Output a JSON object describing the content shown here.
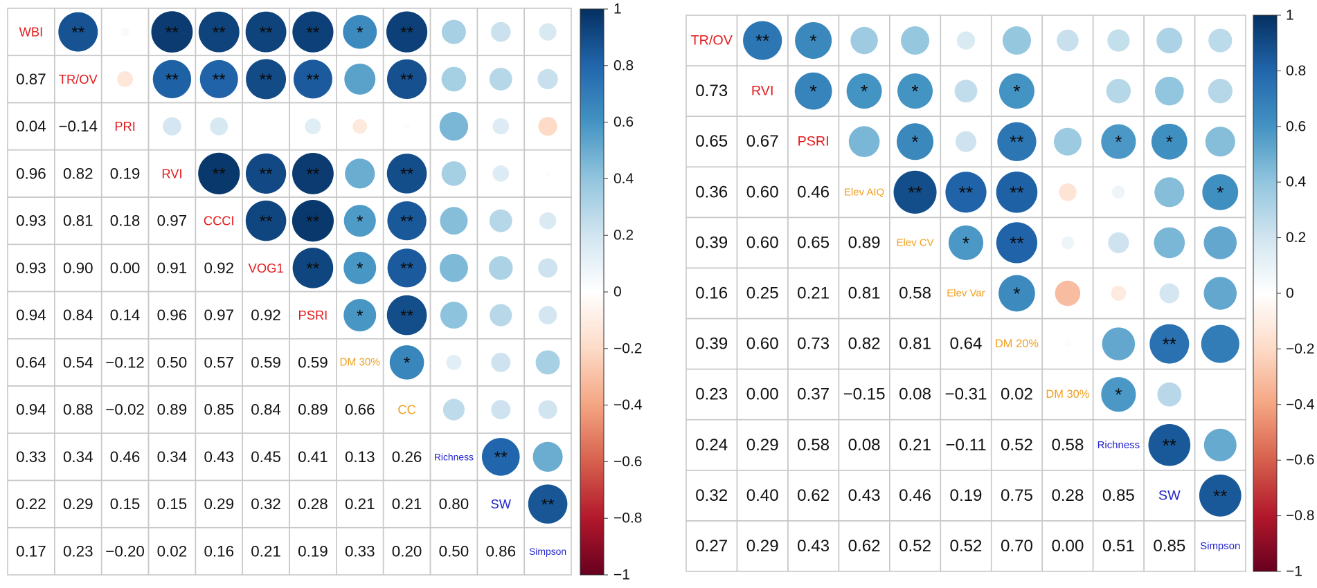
{
  "colors": {
    "label_red": "#e31a1c",
    "label_orange": "#f0a020",
    "label_blue": "#2222cc",
    "grid": "#c8c8c8",
    "text": "#111111"
  },
  "chart_data": [
    {
      "type": "heatmap",
      "subtype": "correlation-matrix",
      "upper": "circles sized and colored by correlation, significance stars",
      "lower": "correlation coefficients printed as numbers",
      "variables": [
        "WBI",
        "TR/OV",
        "PRI",
        "RVI",
        "CCCI",
        "VOG1",
        "PSRI",
        "DM 30%",
        "CC",
        "Richness",
        "SW",
        "Simpson"
      ],
      "variable_groups": [
        "red",
        "red",
        "red",
        "red",
        "red",
        "red",
        "red",
        "orange",
        "orange",
        "blue",
        "blue",
        "blue"
      ],
      "matrix": [
        [
          1,
          0.87,
          0.04,
          0.96,
          0.93,
          0.93,
          0.94,
          0.64,
          0.94,
          0.33,
          0.22,
          0.17
        ],
        [
          0.87,
          1,
          -0.14,
          0.82,
          0.81,
          0.9,
          0.84,
          0.54,
          0.88,
          0.34,
          0.29,
          0.23
        ],
        [
          0.04,
          -0.14,
          1,
          0.19,
          0.18,
          0.0,
          0.14,
          -0.12,
          -0.02,
          0.46,
          0.15,
          -0.2
        ],
        [
          0.96,
          0.82,
          0.19,
          1,
          0.97,
          0.91,
          0.96,
          0.5,
          0.89,
          0.34,
          0.15,
          0.02
        ],
        [
          0.93,
          0.81,
          0.18,
          0.97,
          1,
          0.92,
          0.97,
          0.57,
          0.85,
          0.43,
          0.29,
          0.16
        ],
        [
          0.93,
          0.9,
          0.0,
          0.91,
          0.92,
          1,
          0.92,
          0.59,
          0.84,
          0.45,
          0.32,
          0.21
        ],
        [
          0.94,
          0.84,
          0.14,
          0.96,
          0.97,
          0.92,
          1,
          0.59,
          0.89,
          0.41,
          0.28,
          0.19
        ],
        [
          0.64,
          0.54,
          -0.12,
          0.5,
          0.57,
          0.59,
          0.59,
          1,
          0.66,
          0.13,
          0.21,
          0.33
        ],
        [
          0.94,
          0.88,
          -0.02,
          0.89,
          0.85,
          0.84,
          0.89,
          0.66,
          1,
          0.26,
          0.21,
          0.2
        ],
        [
          0.33,
          0.34,
          0.46,
          0.34,
          0.43,
          0.45,
          0.41,
          0.13,
          0.26,
          1,
          0.8,
          0.5
        ],
        [
          0.22,
          0.29,
          0.15,
          0.15,
          0.29,
          0.32,
          0.28,
          0.21,
          0.21,
          0.8,
          1,
          0.86
        ],
        [
          0.17,
          0.23,
          -0.2,
          0.02,
          0.16,
          0.21,
          0.19,
          0.33,
          0.2,
          0.5,
          0.86,
          1
        ]
      ],
      "lower_labels": [
        [],
        [
          "0.87"
        ],
        [
          "0.04",
          "−0.14"
        ],
        [
          "0.96",
          "0.82",
          "0.19"
        ],
        [
          "0.93",
          "0.81",
          "0.18",
          "0.97"
        ],
        [
          "0.93",
          "0.90",
          "0.00",
          "0.91",
          "0.92"
        ],
        [
          "0.94",
          "0.84",
          "0.14",
          "0.96",
          "0.97",
          "0.92"
        ],
        [
          "0.64",
          "0.54",
          "−0.12",
          "0.50",
          "0.57",
          "0.59",
          "0.59"
        ],
        [
          "0.94",
          "0.88",
          "−0.02",
          "0.89",
          "0.85",
          "0.84",
          "0.89",
          "0.66"
        ],
        [
          "0.33",
          "0.34",
          "0.46",
          "0.34",
          "0.43",
          "0.45",
          "0.41",
          "0.13",
          "0.26"
        ],
        [
          "0.22",
          "0.29",
          "0.15",
          "0.15",
          "0.29",
          "0.32",
          "0.28",
          "0.21",
          "0.21",
          "0.80"
        ],
        [
          "0.17",
          "0.23",
          "−0.20",
          "0.02",
          "0.16",
          "0.21",
          "0.19",
          "0.33",
          "0.20",
          "0.50",
          "0.86"
        ]
      ],
      "significance": [
        [
          "",
          "**",
          "",
          "**",
          "**",
          "**",
          "**",
          "*",
          "**",
          "",
          "",
          ""
        ],
        [
          "",
          "",
          "",
          "**",
          "**",
          "**",
          "**",
          "",
          "**",
          "",
          "",
          ""
        ],
        [
          "",
          "",
          "",
          "",
          "",
          "",
          "",
          "",
          "",
          "",
          "",
          ""
        ],
        [
          "",
          "",
          "",
          "",
          "**",
          "**",
          "**",
          "",
          "**",
          "",
          "",
          ""
        ],
        [
          "",
          "",
          "",
          "",
          "",
          "**",
          "**",
          "*",
          "**",
          "",
          "",
          ""
        ],
        [
          "",
          "",
          "",
          "",
          "",
          "",
          "**",
          "*",
          "**",
          "",
          "",
          ""
        ],
        [
          "",
          "",
          "",
          "",
          "",
          "",
          "",
          "*",
          "**",
          "",
          "",
          ""
        ],
        [
          "",
          "",
          "",
          "",
          "",
          "",
          "",
          "",
          "*",
          "",
          "",
          ""
        ],
        [
          "",
          "",
          "",
          "",
          "",
          "",
          "",
          "",
          "",
          "",
          "",
          ""
        ],
        [
          "",
          "",
          "",
          "",
          "",
          "",
          "",
          "",
          "",
          "",
          "**",
          ""
        ],
        [
          "",
          "",
          "",
          "",
          "",
          "",
          "",
          "",
          "",
          "",
          "",
          "**"
        ],
        [
          "",
          "",
          "",
          "",
          "",
          "",
          "",
          "",
          "",
          "",
          "",
          ""
        ]
      ],
      "colorbar": {
        "range": [
          -1,
          1
        ],
        "ticks": [
          1,
          0.8,
          0.6,
          0.4,
          0.2,
          0,
          -0.2,
          -0.4,
          -0.6,
          -0.8,
          -1
        ],
        "tick_labels": [
          "1",
          "0.8",
          "0.6",
          "0.4",
          "0.2",
          "0",
          "−0.2",
          "−0.4",
          "−0.6",
          "−0.8",
          "−1"
        ]
      }
    },
    {
      "type": "heatmap",
      "subtype": "correlation-matrix",
      "upper": "circles sized and colored by correlation, significance stars",
      "lower": "correlation coefficients printed as numbers",
      "variables": [
        "TR/OV",
        "RVI",
        "PSRI",
        "Elev AIQ",
        "Elev CV",
        "Elev Var",
        "DM 20%",
        "DM 30%",
        "Richness",
        "SW",
        "Simpson"
      ],
      "variable_groups": [
        "red",
        "red",
        "red",
        "orange",
        "orange",
        "orange",
        "orange",
        "orange",
        "blue",
        "blue",
        "blue"
      ],
      "matrix": [
        [
          1,
          0.73,
          0.65,
          0.36,
          0.39,
          0.16,
          0.39,
          0.23,
          0.24,
          0.32,
          0.27
        ],
        [
          0.73,
          1,
          0.67,
          0.6,
          0.6,
          0.25,
          0.6,
          0.0,
          0.29,
          0.4,
          0.29
        ],
        [
          0.65,
          0.67,
          1,
          0.46,
          0.65,
          0.21,
          0.73,
          0.37,
          0.58,
          0.62,
          0.43
        ],
        [
          0.36,
          0.6,
          0.46,
          1,
          0.89,
          0.81,
          0.82,
          -0.15,
          0.08,
          0.43,
          0.62
        ],
        [
          0.39,
          0.6,
          0.65,
          0.89,
          1,
          0.58,
          0.81,
          0.08,
          0.21,
          0.46,
          0.52
        ],
        [
          0.16,
          0.25,
          0.21,
          0.81,
          0.58,
          1,
          0.64,
          -0.31,
          -0.11,
          0.19,
          0.52
        ],
        [
          0.39,
          0.6,
          0.73,
          0.82,
          0.81,
          0.64,
          1,
          0.02,
          0.52,
          0.75,
          0.7
        ],
        [
          0.23,
          0.0,
          0.37,
          -0.15,
          0.08,
          -0.31,
          0.02,
          1,
          0.58,
          0.28,
          0.0
        ],
        [
          0.24,
          0.29,
          0.58,
          0.08,
          0.21,
          -0.11,
          0.52,
          0.58,
          1,
          0.85,
          0.51
        ],
        [
          0.32,
          0.4,
          0.62,
          0.43,
          0.46,
          0.19,
          0.75,
          0.28,
          0.85,
          1,
          0.85
        ],
        [
          0.27,
          0.29,
          0.43,
          0.62,
          0.52,
          0.52,
          0.7,
          0.0,
          0.51,
          0.85,
          1
        ]
      ],
      "lower_labels": [
        [],
        [
          "0.73"
        ],
        [
          "0.65",
          "0.67"
        ],
        [
          "0.36",
          "0.60",
          "0.46"
        ],
        [
          "0.39",
          "0.60",
          "0.65",
          "0.89"
        ],
        [
          "0.16",
          "0.25",
          "0.21",
          "0.81",
          "0.58"
        ],
        [
          "0.39",
          "0.60",
          "0.73",
          "0.82",
          "0.81",
          "0.64"
        ],
        [
          "0.23",
          "0.00",
          "0.37",
          "−0.15",
          "0.08",
          "−0.31",
          "0.02"
        ],
        [
          "0.24",
          "0.29",
          "0.58",
          "0.08",
          "0.21",
          "−0.11",
          "0.52",
          "0.58"
        ],
        [
          "0.32",
          "0.40",
          "0.62",
          "0.43",
          "0.46",
          "0.19",
          "0.75",
          "0.28",
          "0.85"
        ],
        [
          "0.27",
          "0.29",
          "0.43",
          "0.62",
          "0.52",
          "0.52",
          "0.70",
          "0.00",
          "0.51",
          "0.85"
        ]
      ],
      "significance": [
        [
          "",
          "**",
          "*",
          "",
          "",
          "",
          "",
          "",
          "",
          "",
          ""
        ],
        [
          "",
          "",
          "*",
          "*",
          "*",
          "",
          "*",
          "",
          "",
          "",
          ""
        ],
        [
          "",
          "",
          "",
          "",
          "*",
          "",
          "**",
          "",
          "*",
          "*",
          ""
        ],
        [
          "",
          "",
          "",
          "",
          "**",
          "**",
          "**",
          "",
          "",
          "",
          "*"
        ],
        [
          "",
          "",
          "",
          "",
          "",
          "*",
          "**",
          "",
          "",
          "",
          ""
        ],
        [
          "",
          "",
          "",
          "",
          "",
          "",
          "*",
          "",
          "",
          "",
          ""
        ],
        [
          "",
          "",
          "",
          "",
          "",
          "",
          "",
          "",
          "",
          "**",
          ""
        ],
        [
          "",
          "",
          "",
          "",
          "",
          "",
          "",
          "",
          "*",
          "",
          ""
        ],
        [
          "",
          "",
          "",
          "",
          "",
          "",
          "",
          "",
          "",
          "**",
          ""
        ],
        [
          "",
          "",
          "",
          "",
          "",
          "",
          "",
          "",
          "",
          "",
          "**"
        ],
        [
          "",
          "",
          "",
          "",
          "",
          "",
          "",
          "",
          "",
          "",
          ""
        ]
      ],
      "colorbar": {
        "range": [
          -1,
          1
        ],
        "ticks": [
          1,
          0.8,
          0.6,
          0.4,
          0.2,
          0,
          -0.2,
          -0.4,
          -0.6,
          -0.8,
          -1
        ],
        "tick_labels": [
          "1",
          "0.8",
          "0.6",
          "0.4",
          "0.2",
          "0",
          "−0.2",
          "−0.4",
          "−0.6",
          "−0.8",
          "−1"
        ]
      }
    }
  ]
}
